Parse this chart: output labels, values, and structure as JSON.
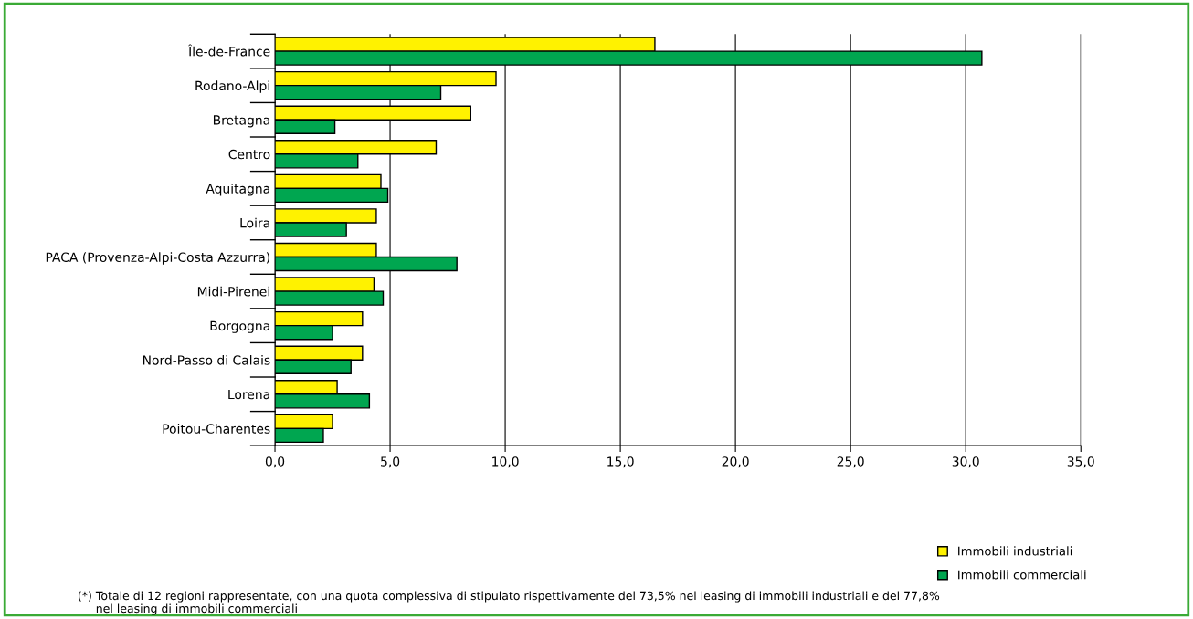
{
  "chart_data": {
    "type": "bar",
    "orientation": "horizontal",
    "categories": [
      "Île-de-France",
      "Rodano-Alpi",
      "Bretagna",
      "Centro",
      "Aquitagna",
      "Loira",
      "PACA (Provenza-Alpi-Costa Azzurra)",
      "Midi-Pirenei",
      "Borgogna",
      "Nord-Passo di Calais",
      "Lorena",
      "Poitou-Charentes"
    ],
    "series": [
      {
        "name": "Immobili industriali",
        "color": "#fff200",
        "values": [
          16.5,
          9.6,
          8.5,
          7.0,
          4.6,
          4.4,
          4.4,
          4.3,
          3.8,
          3.8,
          2.7,
          2.5
        ]
      },
      {
        "name": "Immobili commerciali",
        "color": "#00a650",
        "values": [
          30.7,
          7.2,
          2.6,
          3.6,
          4.9,
          3.1,
          7.9,
          4.7,
          2.5,
          3.3,
          4.1,
          2.1
        ]
      }
    ],
    "xlim": [
      0,
      35
    ],
    "xticks": [
      {
        "value": 0,
        "label": "0,0"
      },
      {
        "value": 5,
        "label": "5,0"
      },
      {
        "value": 10,
        "label": "10,0"
      },
      {
        "value": 15,
        "label": "15,0"
      },
      {
        "value": 20,
        "label": "20,0"
      },
      {
        "value": 25,
        "label": "25,0"
      },
      {
        "value": 30,
        "label": "30,0"
      },
      {
        "value": 35,
        "label": "35,0"
      }
    ],
    "grid": "x",
    "legend": "bottom right",
    "annotations": [
      "(*) Totale di 12 regioni rappresentate, con una quota complessiva di stipulato rispettivamente del 73,5% nel leasing di immobili industriali e del 77,8%\n     nel leasing di immobili commerciali"
    ]
  }
}
